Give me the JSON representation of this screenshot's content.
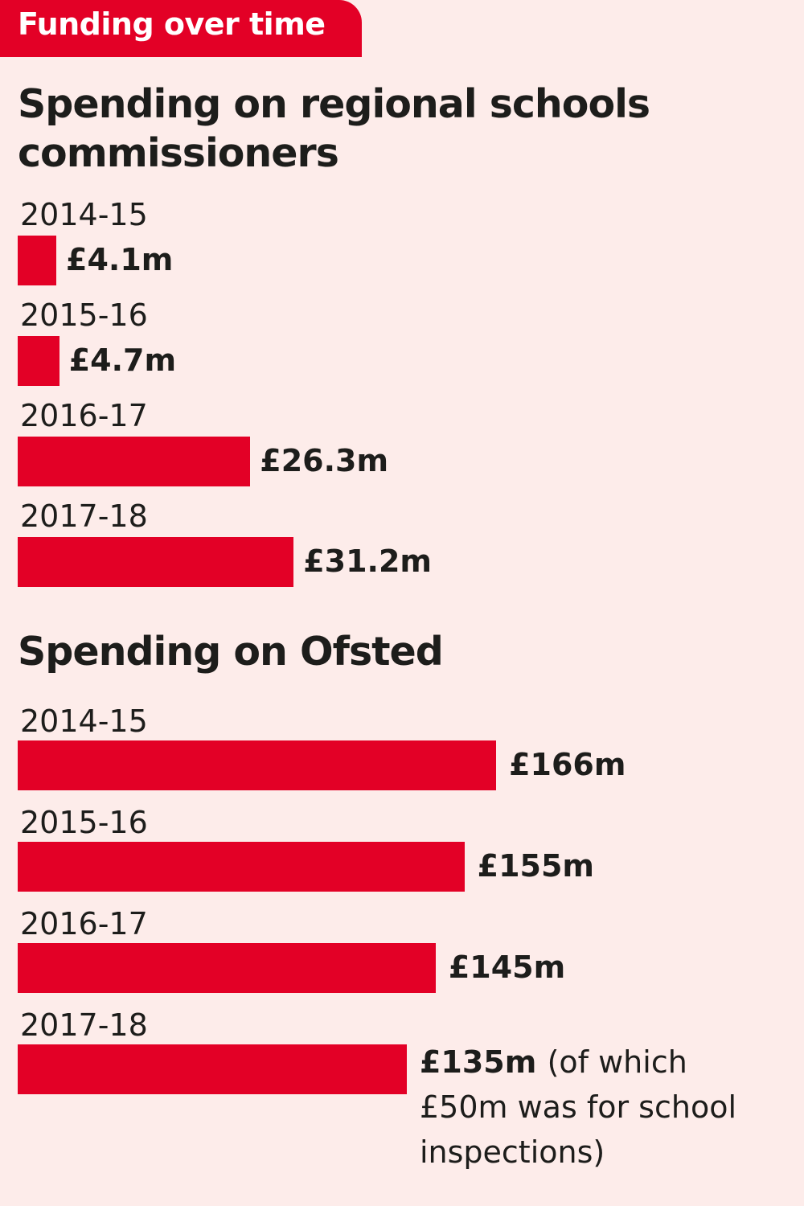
{
  "header": {
    "tab_label": "Funding over time"
  },
  "chart_data": [
    {
      "type": "bar",
      "orientation": "horizontal",
      "title": "Spending on regional schools commissioners",
      "categories": [
        "2014-15",
        "2015-16",
        "2016-17",
        "2017-18"
      ],
      "values": [
        4.1,
        4.7,
        26.3,
        31.2
      ],
      "unit": "£m",
      "labels": [
        "£4.1m",
        "£4.7m",
        "£26.3m",
        "£31.2m"
      ],
      "color": "#e30026"
    },
    {
      "type": "bar",
      "orientation": "horizontal",
      "title": "Spending on Ofsted",
      "categories": [
        "2014-15",
        "2015-16",
        "2016-17",
        "2017-18"
      ],
      "values": [
        166,
        155,
        145,
        135
      ],
      "unit": "£m",
      "labels": [
        "£166m",
        "£155m",
        "£145m",
        "£135m"
      ],
      "annotation": "(of which £50m was for school inspections)",
      "color": "#e30026"
    }
  ]
}
